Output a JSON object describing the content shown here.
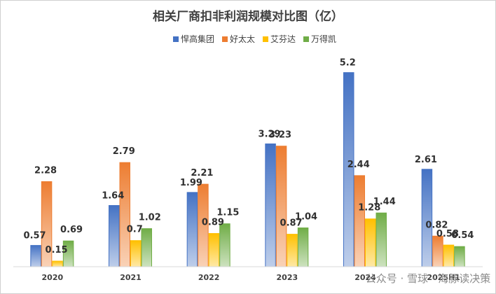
{
  "chart_data": {
    "type": "bar",
    "title": "相关厂商扣非利润规模对比图（亿）",
    "categories": [
      "2020",
      "2021",
      "2022",
      "2023",
      "2024",
      "2025H1"
    ],
    "series": [
      {
        "name": "悍高集团",
        "values": [
          0.57,
          1.64,
          1.99,
          3.29,
          5.2,
          2.61
        ],
        "color": "#4472C4"
      },
      {
        "name": "好太太",
        "values": [
          2.28,
          2.79,
          2.21,
          3.23,
          2.44,
          0.82
        ],
        "color": "#ED7D31"
      },
      {
        "name": "艾芬达",
        "values": [
          0.15,
          0.7,
          0.89,
          0.87,
          1.28,
          0.58
        ],
        "color": "#FFC000"
      },
      {
        "name": "万得凯",
        "values": [
          0.69,
          1.02,
          1.15,
          1.04,
          1.44,
          0.54
        ],
        "color": "#70AD47"
      }
    ],
    "xlabel": "",
    "ylabel": "",
    "ylim": [
      0,
      6
    ],
    "legend": "top",
    "grid": false
  },
  "watermark": "公众号 · 雪球 · 海豚读决策"
}
